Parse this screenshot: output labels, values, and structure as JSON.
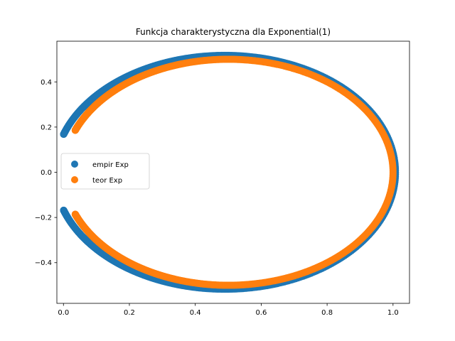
{
  "chart_data": {
    "type": "scatter",
    "title": "Funkcja charakterystyczna dla Exponential(1)",
    "xlabel": "",
    "ylabel": "",
    "xlim": [
      -0.02,
      1.05
    ],
    "ylim": [
      -0.58,
      0.58
    ],
    "xticks": [
      0.0,
      0.2,
      0.4,
      0.6,
      0.8,
      1.0
    ],
    "xtick_labels": [
      "0.0",
      "0.2",
      "0.4",
      "0.6",
      "0.8",
      "1.0"
    ],
    "yticks": [
      -0.4,
      -0.2,
      0.0,
      0.2,
      0.4
    ],
    "ytick_labels": [
      "−0.4",
      "−0.2",
      "0.0",
      "0.2",
      "0.4"
    ],
    "grid": false,
    "legend_position": "center-left",
    "description": "Points of the characteristic function phi(t) = 1/(1 - i t) plotted as (Re, Im); theoretical curve is a circle of center (0.5, 0) radius 0.5 truncated near x≈0.035; empirical curve slightly outside, truncated near x≈0.027.",
    "series": [
      {
        "name": "empir Exp",
        "color": "#1f77b4",
        "t_range": [
          -6,
          6
        ],
        "x": [
          0.027,
          0.05,
          0.1,
          0.2,
          0.3,
          0.4,
          0.5,
          0.6,
          0.7,
          0.8,
          0.9,
          0.95,
          1.0,
          0.95,
          0.9,
          0.8,
          0.7,
          0.6,
          0.5,
          0.4,
          0.3,
          0.2,
          0.1,
          0.05,
          0.027
        ],
        "y": [
          -0.18,
          -0.23,
          -0.31,
          -0.41,
          -0.47,
          -0.51,
          -0.52,
          -0.5,
          -0.46,
          -0.4,
          -0.29,
          -0.2,
          0.0,
          0.2,
          0.29,
          0.4,
          0.46,
          0.5,
          0.52,
          0.51,
          0.47,
          0.41,
          0.31,
          0.23,
          0.18
        ]
      },
      {
        "name": "teor Exp",
        "color": "#ff7f0e",
        "t_range": [
          -5.2,
          5.2
        ],
        "x": [
          0.036,
          0.05,
          0.1,
          0.2,
          0.3,
          0.4,
          0.5,
          0.6,
          0.7,
          0.8,
          0.9,
          0.95,
          1.0,
          0.95,
          0.9,
          0.8,
          0.7,
          0.6,
          0.5,
          0.4,
          0.3,
          0.2,
          0.1,
          0.05,
          0.036
        ],
        "y": [
          -0.186,
          -0.218,
          -0.3,
          -0.4,
          -0.458,
          -0.49,
          -0.5,
          -0.49,
          -0.458,
          -0.4,
          -0.3,
          -0.218,
          0.0,
          0.218,
          0.3,
          0.4,
          0.458,
          0.49,
          0.5,
          0.49,
          0.458,
          0.4,
          0.3,
          0.218,
          0.186
        ]
      }
    ]
  }
}
